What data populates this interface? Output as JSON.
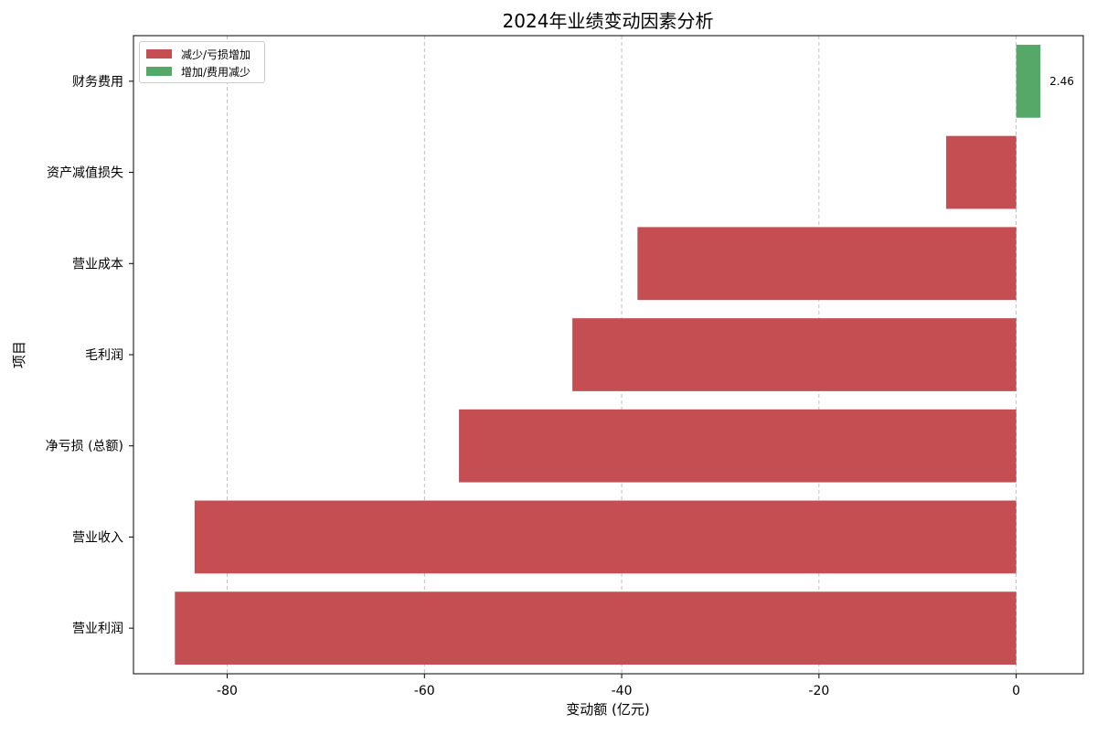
{
  "chart_data": {
    "type": "bar",
    "orientation": "horizontal",
    "title": "2024年业绩变动因素分析",
    "xlabel": "变动额 (亿元)",
    "ylabel": "项目",
    "xlim": [
      -89.5,
      6.8
    ],
    "xticks": [
      -80,
      -60,
      -40,
      -20,
      0
    ],
    "grid": "x-dashed",
    "legend_position": "top-left",
    "categories": [
      "财务费用",
      "资产减值损失",
      "营业成本",
      "毛利润",
      "净亏损 (总额)",
      "营业收入",
      "营业利润"
    ],
    "values": [
      2.46,
      -7.1,
      -38.4,
      -45.0,
      -56.5,
      -83.3,
      -85.3
    ],
    "data_labels": [
      "2.46",
      "",
      "",
      "",
      "",
      "",
      ""
    ],
    "legend": [
      {
        "label": "减少/亏损增加",
        "color": "#c44e52"
      },
      {
        "label": "增加/费用减少",
        "color": "#55a868"
      }
    ],
    "colors": {
      "negative": "#c44e52",
      "positive": "#55a868",
      "grid": "#b0b0b0"
    }
  }
}
